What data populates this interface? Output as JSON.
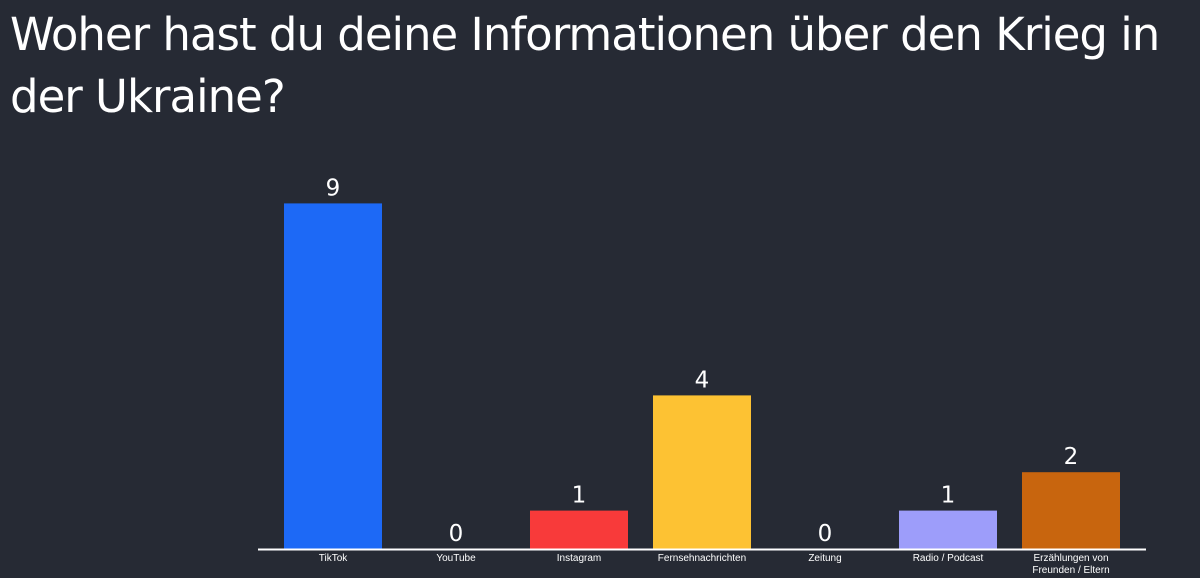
{
  "title": "Woher hast du deine Informationen über den Krieg in der Ukraine?",
  "chart_data": {
    "type": "bar",
    "title": "Woher hast du deine Informationen über den Krieg in der Ukraine?",
    "xlabel": "",
    "ylabel": "",
    "grid": false,
    "ylim": [
      0,
      9
    ],
    "categories": [
      [
        "TikTok"
      ],
      [
        "YouTube"
      ],
      [
        "Instagram"
      ],
      [
        "Fernsehnachrichten"
      ],
      [
        "Zeitung"
      ],
      [
        "Radio / Podcast"
      ],
      [
        "Erzählungen von",
        "Freunden / Eltern"
      ]
    ],
    "values": [
      9,
      0,
      1,
      4,
      0,
      1,
      2
    ],
    "colors": [
      "#1d69f6",
      "#1d69f6",
      "#f83a3a",
      "#fdc233",
      "#fdc233",
      "#9d9dfa",
      "#c8650e"
    ]
  }
}
